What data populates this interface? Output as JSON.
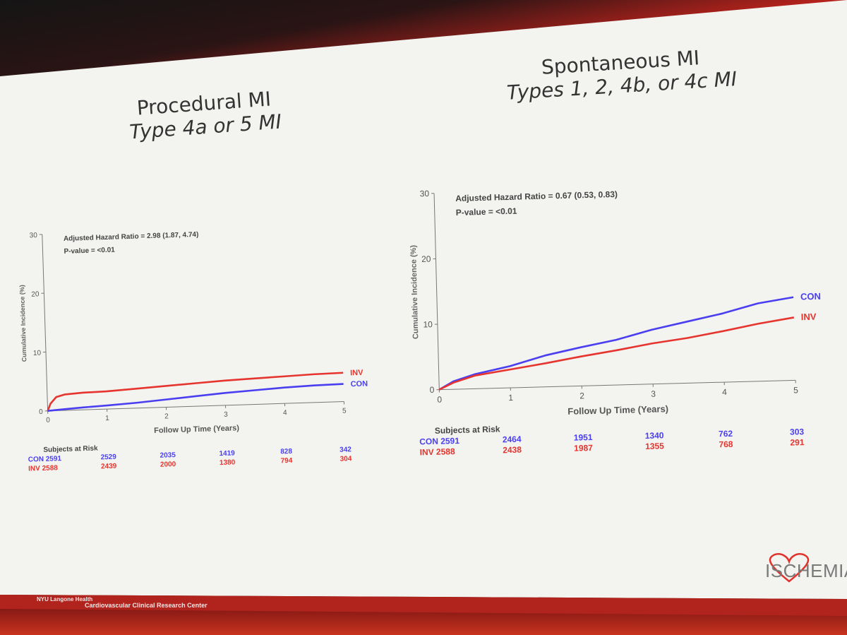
{
  "slide": {
    "left_title": {
      "line1": "Procedural MI",
      "line2": "Type 4a or 5 MI"
    },
    "right_title": {
      "line1": "Spontaneous MI",
      "line2": "Types 1, 2, 4b, or 4c MI"
    },
    "footer": {
      "institution": "NYU Langone Health",
      "center": "Cardiovascular Clinical Research Center"
    },
    "logo": "ISCHEMIA"
  },
  "colors": {
    "con": "#4a3ff0",
    "inv": "#e6342e",
    "axis": "#777777",
    "text": "#555555"
  },
  "chart_data": [
    {
      "type": "line",
      "title": "Procedural MI",
      "subtitle": "Type 4a or 5 MI",
      "xlabel": "Follow Up Time (Years)",
      "ylabel": "Cumulative Incidence (%)",
      "xlim": [
        0,
        5
      ],
      "ylim": [
        0,
        30
      ],
      "x_ticks": [
        "0",
        "1",
        "2",
        "3",
        "4",
        "5"
      ],
      "y_ticks": [
        "0",
        "10",
        "20",
        "30"
      ],
      "annotation": [
        "Adjusted Hazard Ratio = 2.98 (1.87, 4.74)",
        "P-value = <0.01"
      ],
      "series": [
        {
          "name": "INV",
          "color": "#e6342e",
          "points": [
            [
              0,
              0
            ],
            [
              0.05,
              1.2
            ],
            [
              0.15,
              2.3
            ],
            [
              0.3,
              2.7
            ],
            [
              0.6,
              2.9
            ],
            [
              1,
              3.0
            ],
            [
              1.5,
              3.3
            ],
            [
              2,
              3.6
            ],
            [
              2.5,
              3.9
            ],
            [
              3,
              4.2
            ],
            [
              3.5,
              4.4
            ],
            [
              4,
              4.6
            ],
            [
              4.5,
              4.8
            ],
            [
              5,
              4.9
            ]
          ]
        },
        {
          "name": "CON",
          "color": "#4a3ff0",
          "points": [
            [
              0,
              0
            ],
            [
              0.3,
              0.2
            ],
            [
              0.6,
              0.4
            ],
            [
              1,
              0.6
            ],
            [
              1.5,
              0.9
            ],
            [
              2,
              1.3
            ],
            [
              2.5,
              1.7
            ],
            [
              3,
              2.1
            ],
            [
              3.5,
              2.4
            ],
            [
              4,
              2.7
            ],
            [
              4.5,
              2.9
            ],
            [
              5,
              3.0
            ]
          ]
        }
      ],
      "risk_table": {
        "header": "Subjects at Risk",
        "rows": [
          {
            "label": "CON 2591",
            "color": "#4a3ff0",
            "values": [
              "2529",
              "2035",
              "1419",
              "828",
              "342"
            ]
          },
          {
            "label": "INV 2588",
            "color": "#e6342e",
            "values": [
              "2439",
              "2000",
              "1380",
              "794",
              "304"
            ]
          }
        ]
      }
    },
    {
      "type": "line",
      "title": "Spontaneous MI",
      "subtitle": "Types 1, 2, 4b, or 4c MI",
      "xlabel": "Follow Up Time (Years)",
      "ylabel": "Cumulative Incidence (%)",
      "xlim": [
        0,
        5
      ],
      "ylim": [
        0,
        30
      ],
      "x_ticks": [
        "0",
        "1",
        "2",
        "3",
        "4",
        "5"
      ],
      "y_ticks": [
        "0",
        "10",
        "20",
        "30"
      ],
      "annotation": [
        "Adjusted Hazard Ratio = 0.67 (0.53, 0.83)",
        "P-value = <0.01"
      ],
      "series": [
        {
          "name": "CON",
          "color": "#4a3ff0",
          "points": [
            [
              0,
              0
            ],
            [
              0.2,
              1.2
            ],
            [
              0.5,
              2.2
            ],
            [
              1,
              3.3
            ],
            [
              1.5,
              4.8
            ],
            [
              2,
              5.9
            ],
            [
              2.5,
              6.9
            ],
            [
              3,
              8.3
            ],
            [
              3.5,
              9.4
            ],
            [
              4,
              10.5
            ],
            [
              4.5,
              11.9
            ],
            [
              5,
              12.7
            ]
          ]
        },
        {
          "name": "INV",
          "color": "#e6342e",
          "points": [
            [
              0,
              0
            ],
            [
              0.2,
              1.0
            ],
            [
              0.5,
              2.0
            ],
            [
              1,
              2.8
            ],
            [
              1.5,
              3.6
            ],
            [
              2,
              4.5
            ],
            [
              2.5,
              5.3
            ],
            [
              3,
              6.2
            ],
            [
              3.5,
              6.9
            ],
            [
              4,
              7.8
            ],
            [
              4.5,
              8.8
            ],
            [
              5,
              9.6
            ]
          ]
        }
      ],
      "risk_table": {
        "header": "Subjects at Risk",
        "rows": [
          {
            "label": "CON 2591",
            "color": "#4a3ff0",
            "values": [
              "2464",
              "1951",
              "1340",
              "762",
              "303"
            ]
          },
          {
            "label": "INV 2588",
            "color": "#e6342e",
            "values": [
              "2438",
              "1987",
              "1355",
              "768",
              "291"
            ]
          }
        ]
      }
    }
  ]
}
